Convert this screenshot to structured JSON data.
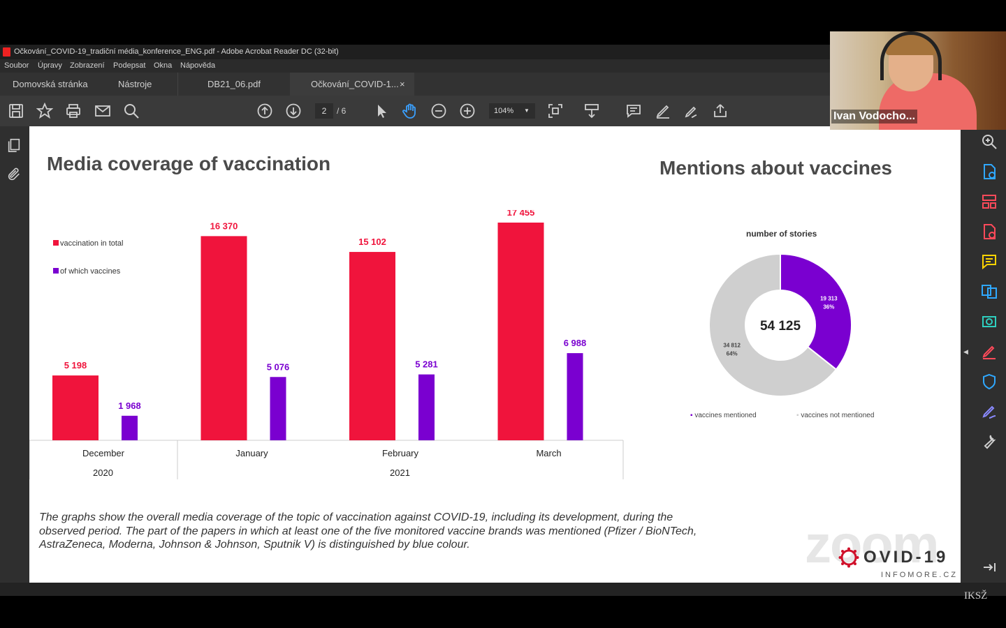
{
  "window": {
    "title": "Očkování_COVID-19_tradiční média_konference_ENG.pdf - Adobe Acrobat Reader DC (32-bit)"
  },
  "menu": [
    "Soubor",
    "Úpravy",
    "Zobrazení",
    "Podepsat",
    "Okna",
    "Nápověda"
  ],
  "tabs": {
    "home": "Domovská stránka",
    "tools": "Nástroje",
    "doc1": "DB21_06.pdf",
    "doc2": "Očkování_COVID-1...",
    "close": "×"
  },
  "toolbar": {
    "page_current": "2",
    "page_total": "/ 6",
    "zoom": "104%"
  },
  "colors": {
    "total": "#f0143c",
    "vaccines": "#7a00d0",
    "donut_grey": "#cfcfcf"
  },
  "slide": {
    "left_title": "Media coverage of vaccination",
    "right_title": "Mentions about vaccines",
    "legend_total": "vaccination in total",
    "legend_vaccines": "of which vaccines",
    "year_2020": "2020",
    "year_2021": "2021",
    "caption_line1": "The graphs show the overall media coverage of the topic of vaccination against COVID-19, including its development, during the",
    "caption_line2": "observed period. The part of the papers in which at least one of the five monitored vaccine brands was mentioned (Pfizer / BioNTech,",
    "caption_line3": "AstraZeneca, Moderna, Johnson & Johnson, Sputnik V) is distinguished by blue colour.",
    "logo_text": "OVID-19",
    "logo_sub": "INFOMORE.CZ"
  },
  "chart_data": [
    {
      "type": "bar",
      "categories": [
        "December",
        "January",
        "February",
        "March"
      ],
      "series": [
        {
          "name": "vaccination in total",
          "values": [
            5198,
            16370,
            15102,
            17455
          ],
          "labels": [
            "5 198",
            "16 370",
            "15 102",
            "17 455"
          ]
        },
        {
          "name": "of which vaccines",
          "values": [
            1968,
            5076,
            5281,
            6988
          ],
          "labels": [
            "1 968",
            "5 076",
            "5 281",
            "6 988"
          ]
        }
      ],
      "year_groups": [
        {
          "label": "2020",
          "categories": [
            "December"
          ]
        },
        {
          "label": "2021",
          "categories": [
            "January",
            "February",
            "March"
          ]
        }
      ],
      "ylim": [
        0,
        17455
      ]
    },
    {
      "type": "pie",
      "title": "number of stories",
      "center_label": "54 125",
      "total": 54125,
      "slices": [
        {
          "name": "vaccines mentioned",
          "value": 19313,
          "label": "19 313",
          "percent": "36%"
        },
        {
          "name": "vaccines not mentioned",
          "value": 34812,
          "label": "34 812",
          "percent": "64%"
        }
      ]
    }
  ],
  "webcam": {
    "name": "Ivan Vodocho..."
  },
  "watermark": {
    "zoom": "zoom",
    "corner": "IKSŽ"
  }
}
